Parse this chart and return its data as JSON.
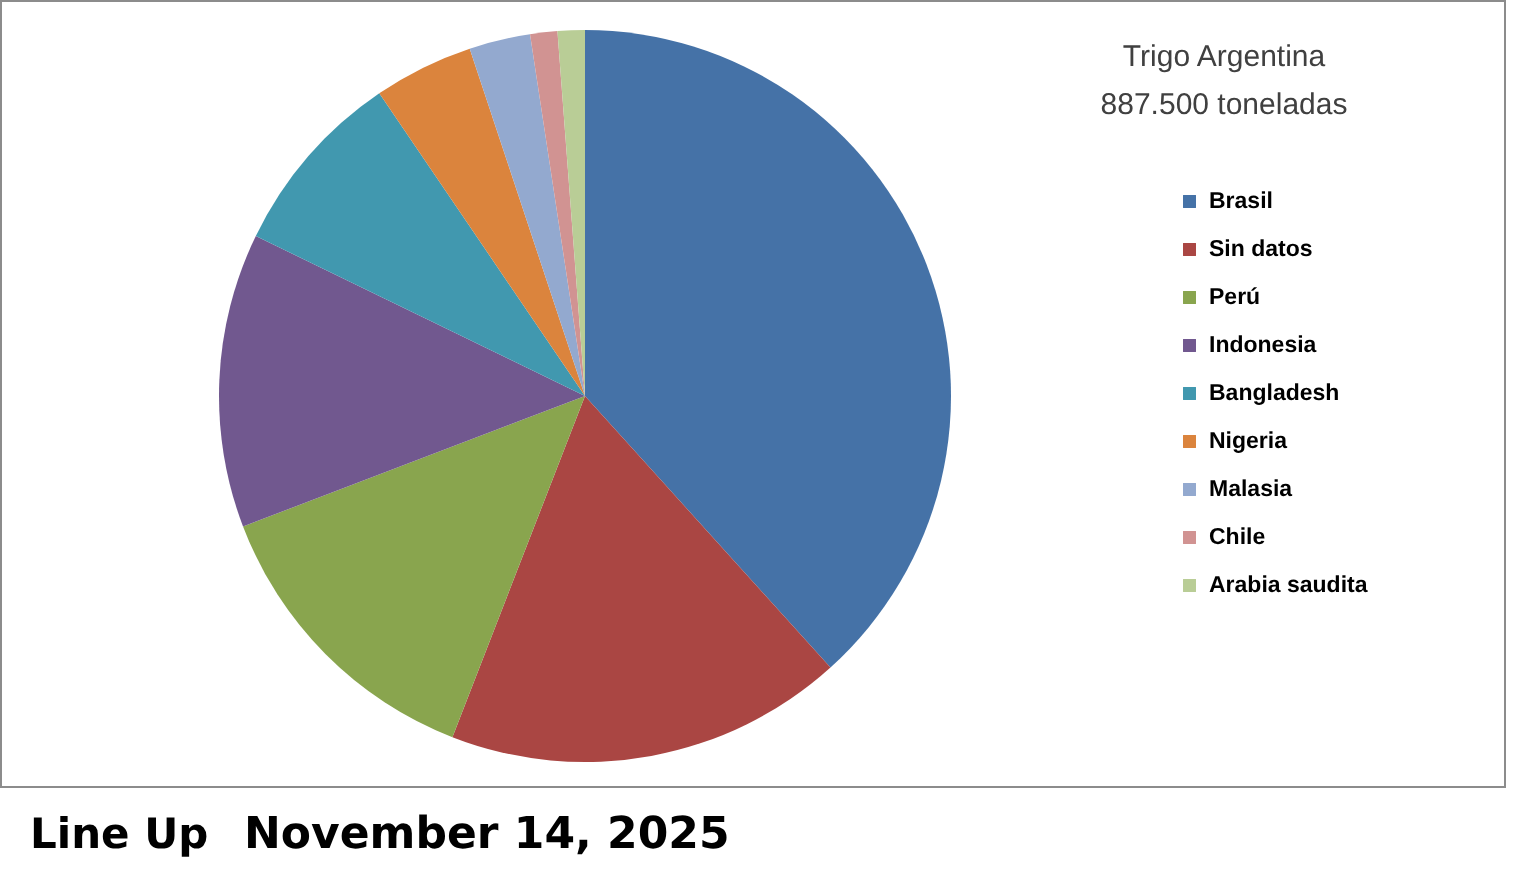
{
  "chart_data": {
    "type": "pie",
    "title": "Trigo Argentina",
    "subtitle": "887.500 toneladas",
    "categories": [
      "Brasil",
      "Sin datos",
      "Perú",
      "Indonesia",
      "Bangladesh",
      "Nigeria",
      "Malasia",
      "Chile",
      "Arabia saudita"
    ],
    "values": [
      38.3,
      17.6,
      13.3,
      13.0,
      8.3,
      4.4,
      2.7,
      1.2,
      1.2
    ],
    "colors": [
      "#4572a7",
      "#aa4643",
      "#89a54e",
      "#71588f",
      "#4198af",
      "#db843d",
      "#93a9cf",
      "#d19392",
      "#b9cd96"
    ],
    "legend": "right",
    "annotations": [
      "Line Up",
      "November 14, 2025"
    ]
  }
}
